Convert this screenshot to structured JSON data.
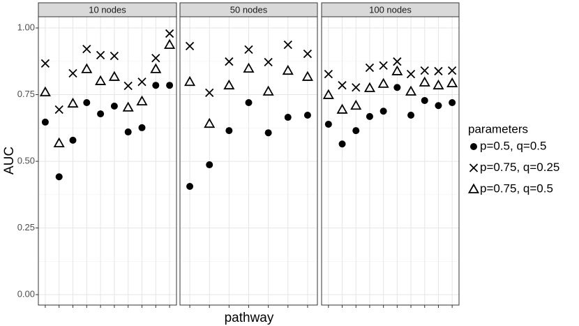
{
  "chart_data": {
    "type": "scatter",
    "ylabel": "AUC",
    "xlabel": "pathway",
    "legend_title": "parameters",
    "ylim": [
      -0.039,
      1.042
    ],
    "yticks": [
      {
        "value": 0,
        "label": "0.00"
      },
      {
        "value": 0.25,
        "label": "0.25"
      },
      {
        "value": 0.5,
        "label": "0.50"
      },
      {
        "value": 0.75,
        "label": "0.75"
      },
      {
        "value": 1,
        "label": "1.00"
      }
    ],
    "grid": true,
    "series": [
      {
        "name": "p=0.5, q=0.5",
        "marker": "circle",
        "color": "#000000"
      },
      {
        "name": "p=0.75, q=0.25",
        "marker": "x",
        "color": "#000000"
      },
      {
        "name": "p=0.75, q=0.5",
        "marker": "triangle",
        "color": "#000000"
      }
    ],
    "facets": [
      {
        "title": "10 nodes",
        "categories": [
          null,
          null,
          null,
          null,
          null,
          null,
          null,
          null,
          null,
          null
        ],
        "series_values": [
          [
            0.647,
            0.442,
            0.579,
            0.72,
            0.678,
            0.707,
            0.61,
            0.626,
            0.785,
            0.785
          ],
          [
            0.867,
            0.694,
            0.83,
            0.921,
            0.898,
            0.895,
            0.783,
            0.798,
            0.887,
            0.979
          ],
          [
            0.759,
            0.568,
            0.717,
            0.846,
            0.801,
            0.817,
            0.702,
            0.725,
            0.846,
            0.937
          ]
        ]
      },
      {
        "title": "50 nodes",
        "categories": [
          null,
          null,
          null,
          null,
          null,
          null,
          null
        ],
        "series_values": [
          [
            0.406,
            0.487,
            0.615,
            0.72,
            0.607,
            0.665,
            0.673
          ],
          [
            0.932,
            0.757,
            0.874,
            0.919,
            0.872,
            0.937,
            0.903
          ],
          [
            0.798,
            0.641,
            0.785,
            0.848,
            0.762,
            0.84,
            0.817
          ]
        ]
      },
      {
        "title": "100 nodes",
        "categories": [
          null,
          null,
          null,
          null,
          null,
          null,
          null,
          null,
          null,
          null
        ],
        "series_values": [
          [
            0.639,
            0.565,
            0.615,
            0.668,
            0.688,
            0.777,
            0.673,
            0.728,
            0.709,
            0.72
          ],
          [
            0.827,
            0.785,
            0.777,
            0.851,
            0.859,
            0.874,
            0.827,
            0.84,
            0.838,
            0.84
          ],
          [
            0.749,
            0.694,
            0.709,
            0.775,
            0.791,
            0.838,
            0.762,
            0.796,
            0.785,
            0.793
          ]
        ]
      }
    ]
  }
}
